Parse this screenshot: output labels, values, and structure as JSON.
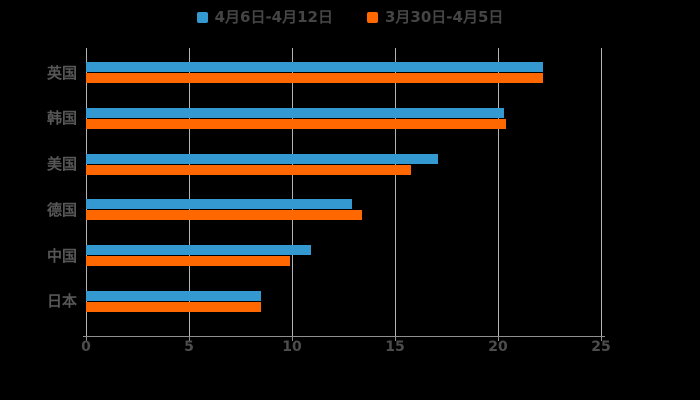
{
  "chart_data": {
    "type": "bar",
    "orientation": "horizontal",
    "title": "",
    "xlabel": "",
    "ylabel": "",
    "categories": [
      "英国",
      "韩国",
      "美国",
      "德国",
      "中国",
      "日本"
    ],
    "series": [
      {
        "name": "4月6日-4月12日",
        "color": "#3599d1",
        "values": [
          22.2,
          20.3,
          17.1,
          12.9,
          10.9,
          8.5
        ]
      },
      {
        "name": "3月30日-4月5日",
        "color": "#ff6700",
        "values": [
          22.2,
          20.4,
          15.8,
          13.4,
          9.9,
          8.5
        ]
      }
    ],
    "xlim": [
      0,
      25
    ],
    "xticks": [
      0,
      5,
      10,
      15,
      20,
      25
    ],
    "grid": true,
    "legend_position": "top",
    "colors": {
      "background": "#000000",
      "grid_color": "#b3b3b3",
      "axis_color": "#8f8f8f",
      "legend_text_color": "#454545",
      "category_text_color": "#575757",
      "tick_text_color": "#4d4d4d"
    }
  }
}
